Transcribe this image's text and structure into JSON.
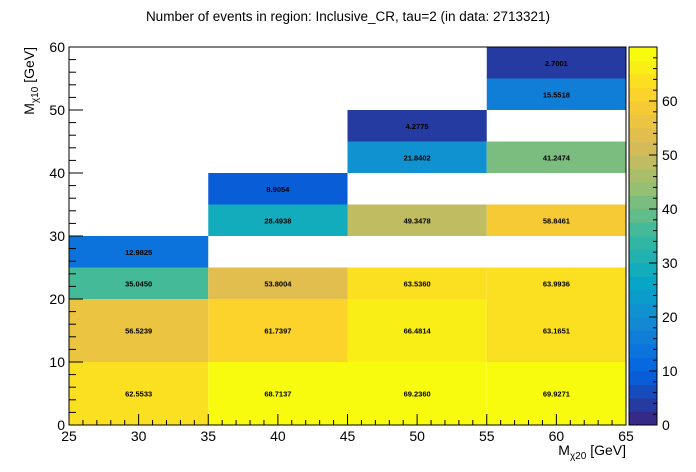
{
  "chart_data": {
    "type": "heatmap",
    "title": "Number of events in region: Inclusive_CR, tau=2 (in data: 2713321)",
    "xlabel": {
      "main": "M",
      "sub": "χ20",
      "unit": " [GeV]"
    },
    "ylabel": {
      "main": "M",
      "sub": "χ10",
      "unit": " [GeV]"
    },
    "xlim": [
      25,
      65
    ],
    "ylim": [
      0,
      60
    ],
    "zlim": [
      0,
      70
    ],
    "x_ticks": [
      "25",
      "30",
      "35",
      "40",
      "45",
      "50",
      "55",
      "60",
      "65"
    ],
    "y_ticks": [
      "0",
      "10",
      "20",
      "30",
      "40",
      "50",
      "60"
    ],
    "z_ticks": [
      "0",
      "10",
      "20",
      "30",
      "40",
      "50",
      "60"
    ],
    "cells": [
      {
        "x0": 25,
        "x1": 35,
        "y0": 0,
        "y1": 10,
        "value": 62.5533,
        "label": "62.5533"
      },
      {
        "x0": 35,
        "x1": 45,
        "y0": 0,
        "y1": 10,
        "value": 68.7137,
        "label": "68.7137"
      },
      {
        "x0": 45,
        "x1": 55,
        "y0": 0,
        "y1": 10,
        "value": 69.236,
        "label": "69.2360"
      },
      {
        "x0": 55,
        "x1": 65,
        "y0": 0,
        "y1": 10,
        "value": 69.9271,
        "label": "69.9271"
      },
      {
        "x0": 25,
        "x1": 35,
        "y0": 10,
        "y1": 20,
        "value": 56.5239,
        "label": "56.5239"
      },
      {
        "x0": 35,
        "x1": 45,
        "y0": 10,
        "y1": 20,
        "value": 61.7397,
        "label": "61.7397"
      },
      {
        "x0": 45,
        "x1": 55,
        "y0": 10,
        "y1": 20,
        "value": 66.4814,
        "label": "66.4814"
      },
      {
        "x0": 55,
        "x1": 65,
        "y0": 10,
        "y1": 20,
        "value": 63.1651,
        "label": "63.1651"
      },
      {
        "x0": 25,
        "x1": 35,
        "y0": 20,
        "y1": 25,
        "value": 35.045,
        "label": "35.0450"
      },
      {
        "x0": 35,
        "x1": 45,
        "y0": 20,
        "y1": 25,
        "value": 53.8004,
        "label": "53.8004"
      },
      {
        "x0": 45,
        "x1": 55,
        "y0": 20,
        "y1": 25,
        "value": 63.536,
        "label": "63.5360"
      },
      {
        "x0": 55,
        "x1": 65,
        "y0": 20,
        "y1": 25,
        "value": 63.9936,
        "label": "63.9936"
      },
      {
        "x0": 25,
        "x1": 35,
        "y0": 25,
        "y1": 30,
        "value": 12.9825,
        "label": "12.9825"
      },
      {
        "x0": 35,
        "x1": 45,
        "y0": 30,
        "y1": 35,
        "value": 28.4938,
        "label": "28.4938"
      },
      {
        "x0": 45,
        "x1": 55,
        "y0": 30,
        "y1": 35,
        "value": 49.3478,
        "label": "49.3478"
      },
      {
        "x0": 55,
        "x1": 65,
        "y0": 30,
        "y1": 35,
        "value": 58.8461,
        "label": "58.8461"
      },
      {
        "x0": 35,
        "x1": 45,
        "y0": 35,
        "y1": 40,
        "value": 8.9054,
        "label": "8.9054"
      },
      {
        "x0": 45,
        "x1": 55,
        "y0": 40,
        "y1": 45,
        "value": 21.8402,
        "label": "21.8402"
      },
      {
        "x0": 55,
        "x1": 65,
        "y0": 40,
        "y1": 45,
        "value": 41.2474,
        "label": "41.2474"
      },
      {
        "x0": 45,
        "x1": 55,
        "y0": 45,
        "y1": 50,
        "value": 4.2775,
        "label": "4.2775"
      },
      {
        "x0": 55,
        "x1": 65,
        "y0": 50,
        "y1": 55,
        "value": 15.5518,
        "label": "15.5518"
      },
      {
        "x0": 55,
        "x1": 65,
        "y0": 55,
        "y1": 60,
        "value": 2.7001,
        "label": "2.7001"
      }
    ],
    "palette": {
      "name": "kBird",
      "stops": [
        "#352a87",
        "#0363e1",
        "#1485d4",
        "#06a7c6",
        "#38b99e",
        "#92bf73",
        "#d9ba56",
        "#fcce2e",
        "#f9fb0e"
      ]
    },
    "grid": false,
    "legend": "none"
  }
}
